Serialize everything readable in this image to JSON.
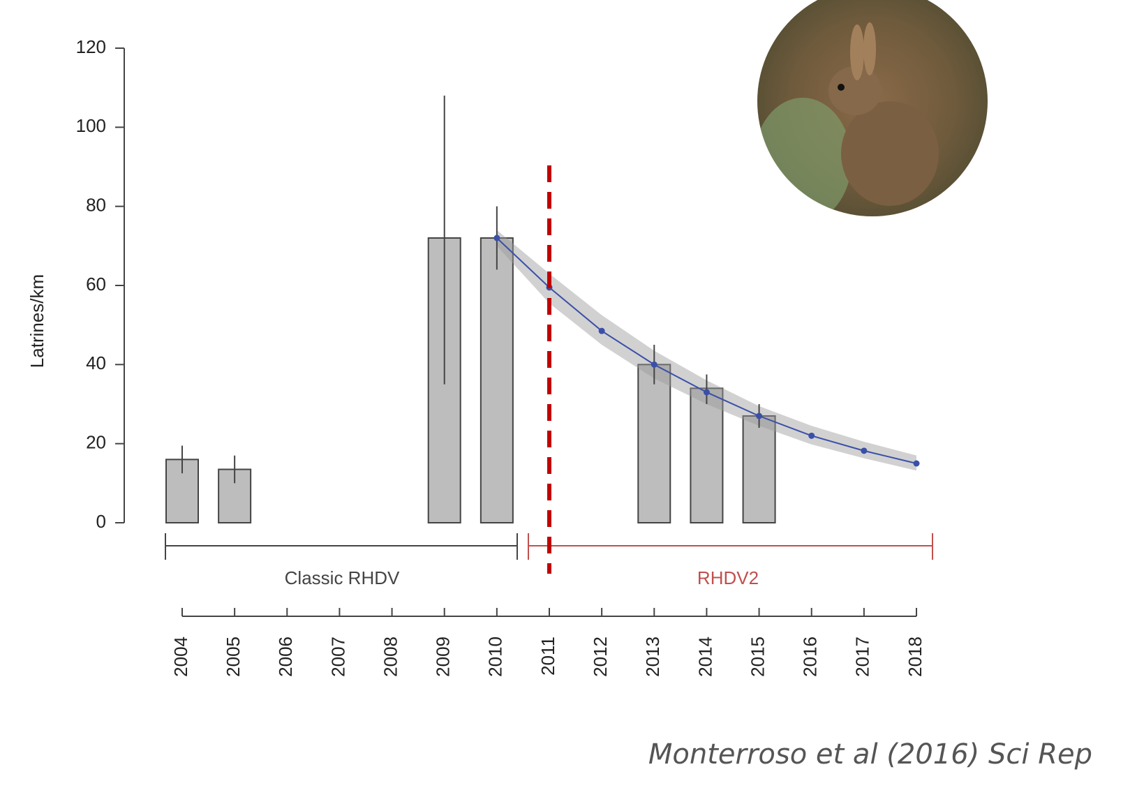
{
  "chart_data": {
    "type": "bar",
    "y_label": "Latrines/km",
    "categories": [
      "2004",
      "2005",
      "2006",
      "2007",
      "2008",
      "2009",
      "2010",
      "2011",
      "2012",
      "2013",
      "2014",
      "2015",
      "2016",
      "2017",
      "2018"
    ],
    "values": [
      16,
      13.5,
      null,
      null,
      null,
      72,
      72,
      null,
      null,
      40,
      34,
      27,
      null,
      null,
      null
    ],
    "err_low": [
      12.5,
      10,
      null,
      null,
      null,
      35,
      64,
      null,
      null,
      35,
      30,
      24,
      null,
      null,
      null
    ],
    "err_high": [
      19.5,
      17,
      null,
      null,
      null,
      108,
      80,
      null,
      null,
      45,
      37.5,
      30,
      null,
      null,
      null
    ],
    "color": "#bdbdbd",
    "ylim": [
      0,
      120
    ],
    "yticks": [
      0,
      20,
      40,
      60,
      80,
      100,
      120
    ],
    "fit": {
      "x": [
        "2010",
        "2011",
        "2012",
        "2013",
        "2014",
        "2015",
        "2016",
        "2017",
        "2018"
      ],
      "values": [
        72,
        59.5,
        48.5,
        40,
        33,
        27,
        22,
        18.2,
        15
      ],
      "upper": [
        74,
        63,
        52.5,
        43.5,
        36,
        29.5,
        24.5,
        20.5,
        17
      ],
      "lower": [
        70,
        55.5,
        45,
        36.5,
        30,
        24.5,
        19.8,
        16.3,
        13.2
      ],
      "color": "#3a4fa8"
    },
    "periods": [
      {
        "label": "Classic RHDV",
        "color": "#444444"
      },
      {
        "label": "RHDV2",
        "color": "#c0504d"
      }
    ],
    "vline": {
      "x": "2011",
      "color": "#c00000"
    },
    "citation": "Monterroso et al (2016) Sci Rep"
  }
}
